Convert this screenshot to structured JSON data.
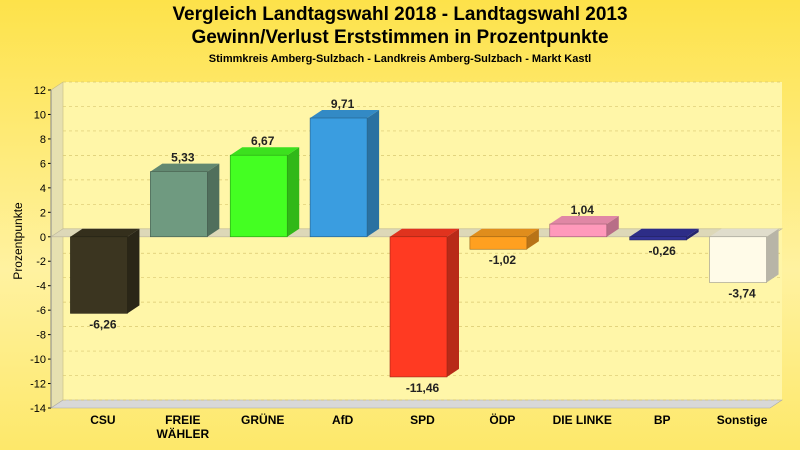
{
  "colors": {
    "background": "#fde74c",
    "plot": "#fff6a8",
    "grid": "#d9c870",
    "floor": "#d8d8d8"
  },
  "chart_data": {
    "type": "bar",
    "title": "Vergleich Landtagswahl 2018 - Landtagswahl 2013",
    "subtitle": "Gewinn/Verlust Erststimmen in Prozentpunkte",
    "subsubtitle": "Stimmkreis Amberg-Sulzbach - Landkreis Amberg-Sulzbach - Markt Kastl",
    "ylabel": "Prozentpunkte",
    "xlabel": "",
    "ylim": [
      -14,
      12
    ],
    "yticks": [
      "12",
      "10",
      "8",
      "6",
      "4",
      "2",
      "0",
      "-2",
      "-4",
      "-6",
      "-8",
      "-10",
      "-12",
      "-14"
    ],
    "grid": true,
    "categories": [
      "CSU",
      "FREIE WÄHLER",
      "GRÜNE",
      "AfD",
      "SPD",
      "ÖDP",
      "DIE LINKE",
      "BP",
      "Sonstige"
    ],
    "category_lines": [
      [
        "CSU"
      ],
      [
        "FREIE",
        "WÄHLER"
      ],
      [
        "GRÜNE"
      ],
      [
        "AfD"
      ],
      [
        "SPD"
      ],
      [
        "ÖDP"
      ],
      [
        "DIE LINKE"
      ],
      [
        "BP"
      ],
      [
        "Sonstige"
      ]
    ],
    "values": [
      -6.26,
      5.33,
      6.67,
      9.71,
      -11.46,
      -1.02,
      1.04,
      -0.26,
      -3.74
    ],
    "value_labels": [
      "-6,26",
      "5,33",
      "6,67",
      "9,71",
      "-11,46",
      "-1,02",
      "1,04",
      "-0,26",
      "-3,74"
    ],
    "bar_colors": [
      "#3b3520",
      "#6f9a80",
      "#44ff22",
      "#3a9de0",
      "#ff3a22",
      "#ffa020",
      "#ff99bb",
      "#333399",
      "#fffbe8"
    ]
  }
}
